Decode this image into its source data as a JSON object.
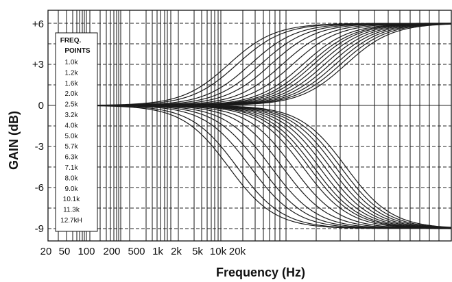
{
  "chart_data": {
    "type": "line",
    "ylabel": "GAIN (dB)",
    "xlabel": "Frequency (Hz)",
    "ylim": [
      -9.5,
      7.0
    ],
    "y_ticks": [
      {
        "value": 6,
        "label": "+6"
      },
      {
        "value": 3,
        "label": "+3"
      },
      {
        "value": 0,
        "label": "0"
      },
      {
        "value": -3,
        "label": "-3"
      },
      {
        "value": -6,
        "label": "-6"
      },
      {
        "value": -9,
        "label": "-9"
      }
    ],
    "x_tick_labels": [
      "20",
      "50",
      "100",
      "200",
      "500",
      "1k",
      "2k",
      "5k",
      "10k",
      "20k"
    ],
    "legend": {
      "title_line1": "FREQ.",
      "title_line2": "POINTS",
      "items": [
        "1.0k",
        "1.2k",
        "1.6k",
        "2.0k",
        "2.5k",
        "3.2k",
        "4.0k",
        "5.0k",
        "5.7k",
        "6.3k",
        "7.1k",
        "8.0k",
        "9.0k",
        "10.1k",
        "11.3k",
        "12.7kH"
      ]
    },
    "boost_max_db": 6,
    "cut_max_db": -9,
    "series_freq_points_hz": [
      1000,
      1200,
      1600,
      2000,
      2500,
      3200,
      4000,
      5000,
      5700,
      6300,
      7100,
      8000,
      9000,
      10100,
      11300,
      12700
    ],
    "grid": true,
    "legend_position": "left"
  }
}
